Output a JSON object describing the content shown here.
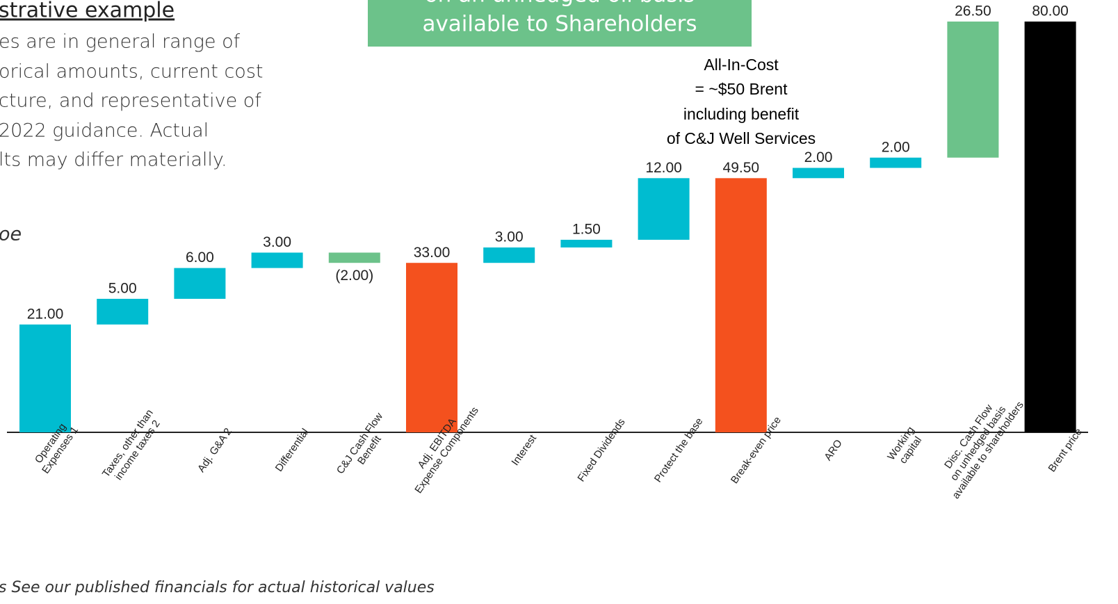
{
  "chart_data": {
    "type": "waterfall",
    "title": "strative example",
    "notes": [
      "es are in general range of",
      "orical amounts, current cost",
      "cture, and representative of",
      "2022 guidance. Actual",
      "lts may differ materially."
    ],
    "unit_label": "oe",
    "callout": [
      "on an unhedged oil basis",
      "available to Shareholders"
    ],
    "annotation": [
      "All-In-Cost",
      "= ~$50 Brent",
      "including benefit",
      "of C&J Well Services"
    ],
    "footnote": "s See our published financials for actual historical values",
    "categories": [
      [
        "Operating",
        "Expenses 1"
      ],
      [
        "Taxes, other than",
        "income taxes 2"
      ],
      [
        "Adj. G&A 2"
      ],
      [
        "Differential"
      ],
      [
        "C&J Cash Flow",
        "Benefit"
      ],
      [
        "Adj. EBITDA",
        "Expense Components"
      ],
      [
        "Interest"
      ],
      [
        "Fixed Dividends"
      ],
      [
        "Protect the base"
      ],
      [
        "Break-even price"
      ],
      [
        "ARO"
      ],
      [
        "Working",
        "capital"
      ],
      [
        "Disc. Cash Flow",
        "on unhedged basis",
        "available to shareholders"
      ],
      [
        "Brent price"
      ]
    ],
    "values": [
      21,
      5,
      6,
      3,
      -2,
      33,
      3,
      1.5,
      12,
      49.5,
      2,
      2,
      26.5,
      80
    ],
    "value_labels": [
      "21.00",
      "5.00",
      "6.00",
      "3.00",
      "(2.00)",
      "33.00",
      "3.00",
      "1.50",
      "12.00",
      "49.50",
      "2.00",
      "2.00",
      "26.50",
      "80.00"
    ],
    "measures": [
      "absolute",
      "relative",
      "relative",
      "relative",
      "relative",
      "absolute",
      "relative",
      "relative",
      "relative",
      "absolute",
      "relative",
      "relative",
      "relative",
      "absolute"
    ],
    "colors": [
      "#00bcd0",
      "#00bcd0",
      "#00bcd0",
      "#00bcd0",
      "#6cc28a",
      "#f4511e",
      "#00bcd0",
      "#00bcd0",
      "#00bcd0",
      "#f4511e",
      "#00bcd0",
      "#00bcd0",
      "#6cc28a",
      "#000000"
    ],
    "ylim": [
      0,
      80
    ]
  }
}
